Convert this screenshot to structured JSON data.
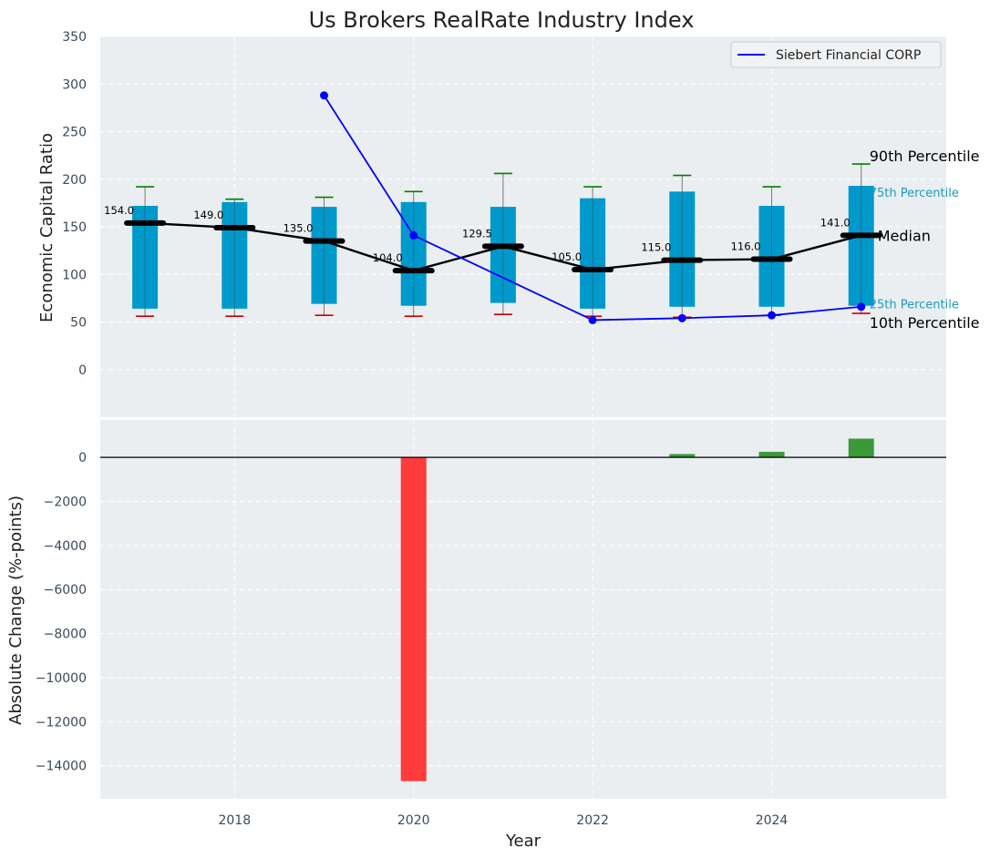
{
  "chart_data": [
    {
      "type": "box-range",
      "title": "Us Brokers RealRate Industry Index",
      "ylabel": "Economic Capital Ratio",
      "ylim": [
        -50,
        350
      ],
      "yticks": [
        "0",
        "50",
        "100",
        "150",
        "200",
        "250",
        "300",
        "350"
      ],
      "grid": true,
      "years": [
        2017,
        2018,
        2019,
        2020,
        2021,
        2022,
        2023,
        2024,
        2025
      ],
      "p10": [
        56,
        56,
        57,
        56,
        58,
        56,
        55,
        57,
        59
      ],
      "p25": [
        64,
        64,
        69,
        67,
        70,
        64,
        66,
        66,
        67
      ],
      "median": [
        154.0,
        149.0,
        135.0,
        104.0,
        129.5,
        105.0,
        115.0,
        116.0,
        141.0
      ],
      "median_labels": [
        "154.0",
        "149.0",
        "135.0",
        "104.0",
        "129.5",
        "105.0",
        "115.0",
        "116.0",
        "141.0"
      ],
      "p75": [
        172,
        176,
        171,
        176,
        171,
        180,
        187,
        172,
        193
      ],
      "p90": [
        192,
        179,
        181,
        187,
        206,
        192,
        204,
        192,
        216
      ],
      "company": {
        "name": "Siebert Financial CORP",
        "years": [
          2019,
          2020,
          2022,
          2023,
          2024,
          2025
        ],
        "values": [
          288,
          141,
          52,
          54,
          57,
          66
        ]
      },
      "percentile_labels": {
        "p90": "90th Percentile",
        "p75": "75th Percentile",
        "median": "Median",
        "p25": "25th Percentile",
        "p10": "10th Percentile"
      },
      "legend_position": "top-right"
    },
    {
      "type": "bar",
      "ylabel": "Absolute Change (%-points)",
      "xlabel": "Year",
      "ylim": [
        -15500,
        1700
      ],
      "yticks": [
        "−14000",
        "−12000",
        "−10000",
        "−8000",
        "−6000",
        "−4000",
        "−2000",
        "0"
      ],
      "xticks": [
        "2018",
        "2020",
        "2022",
        "2024"
      ],
      "years": [
        2020,
        2023,
        2024,
        2025
      ],
      "values": [
        -14700,
        150,
        250,
        850
      ],
      "colors": {
        "negative": "#ff3b3b",
        "positive": "#3a9a3a"
      }
    }
  ],
  "colors": {
    "box": "#0099cc",
    "company_line": "#0000ff",
    "median_line": "#000000",
    "p90_cap": "#008000",
    "p10_cap": "#cc0000",
    "plot_bg": "#eaeef0"
  }
}
